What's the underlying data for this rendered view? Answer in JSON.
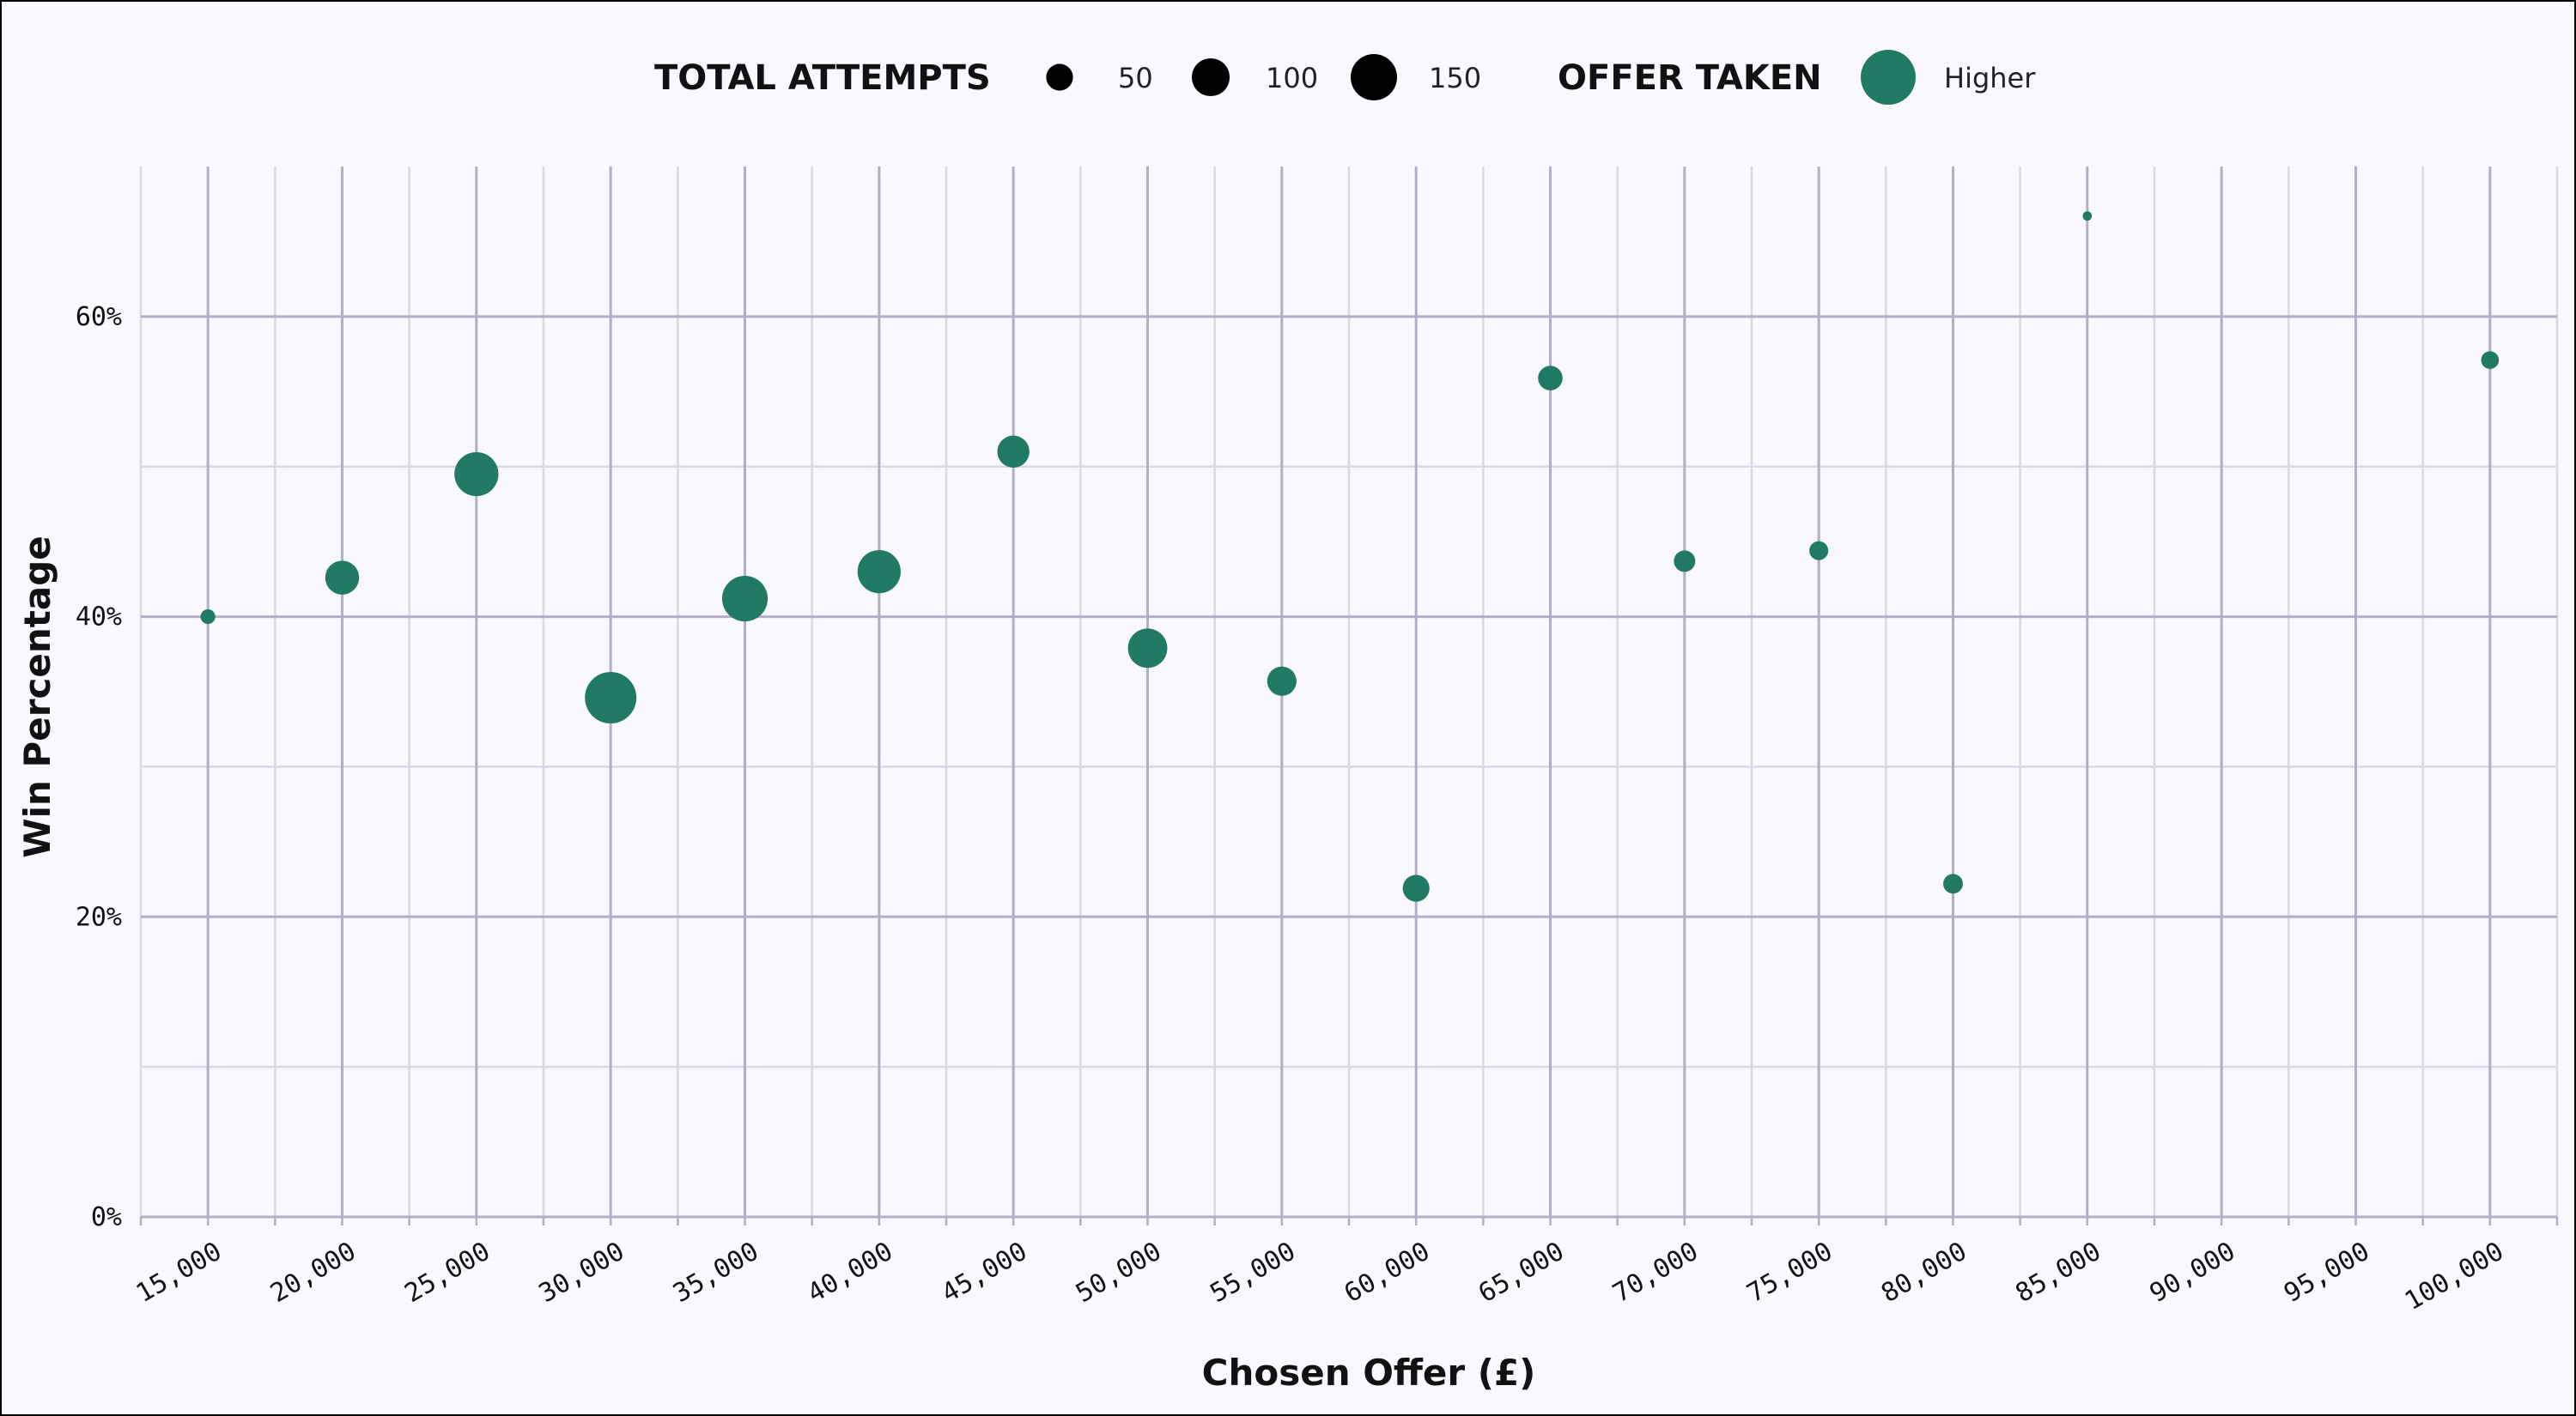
{
  "chart_data": {
    "type": "scatter",
    "title": "",
    "xlabel": "Chosen Offer (£)",
    "ylabel": "Win Percentage",
    "xlim": [
      12500,
      102500
    ],
    "ylim": [
      0,
      0.7
    ],
    "x_ticks": [
      15000,
      20000,
      25000,
      30000,
      35000,
      40000,
      45000,
      50000,
      55000,
      60000,
      65000,
      70000,
      75000,
      80000,
      85000,
      90000,
      95000,
      100000
    ],
    "x_tick_labels": [
      "15,000",
      "20,000",
      "25,000",
      "30,000",
      "35,000",
      "40,000",
      "45,000",
      "50,000",
      "55,000",
      "60,000",
      "65,000",
      "70,000",
      "75,000",
      "80,000",
      "85,000",
      "90,000",
      "95,000",
      "100,000"
    ],
    "y_ticks": [
      0,
      0.2,
      0.4,
      0.6
    ],
    "y_tick_labels": [
      "0%",
      "20%",
      "40%",
      "60%"
    ],
    "grid": true,
    "legend_placement": "top",
    "size_legend": {
      "title": "TOTAL ATTEMPTS",
      "entries": [
        {
          "label": "50",
          "value": 50
        },
        {
          "label": "100",
          "value": 100
        },
        {
          "label": "150",
          "value": 150
        }
      ]
    },
    "color_legend": {
      "title": "OFFER TAKEN",
      "entries": [
        {
          "label": "Higher",
          "color": "#217a63"
        }
      ]
    },
    "series": [
      {
        "name": "Higher",
        "color": "#217a63",
        "points": [
          {
            "x": 15000,
            "y": 0.4,
            "size": 15
          },
          {
            "x": 20000,
            "y": 0.426,
            "size": 80
          },
          {
            "x": 25000,
            "y": 0.495,
            "size": 135
          },
          {
            "x": 30000,
            "y": 0.346,
            "size": 185
          },
          {
            "x": 35000,
            "y": 0.412,
            "size": 145
          },
          {
            "x": 40000,
            "y": 0.43,
            "size": 130
          },
          {
            "x": 45000,
            "y": 0.51,
            "size": 72
          },
          {
            "x": 50000,
            "y": 0.379,
            "size": 108
          },
          {
            "x": 55000,
            "y": 0.357,
            "size": 60
          },
          {
            "x": 60000,
            "y": 0.219,
            "size": 50
          },
          {
            "x": 65000,
            "y": 0.559,
            "size": 42
          },
          {
            "x": 70000,
            "y": 0.437,
            "size": 32
          },
          {
            "x": 75000,
            "y": 0.444,
            "size": 25
          },
          {
            "x": 80000,
            "y": 0.222,
            "size": 27
          },
          {
            "x": 85000,
            "y": 0.667,
            "size": 6
          },
          {
            "x": 100000,
            "y": 0.571,
            "size": 22
          }
        ]
      }
    ]
  }
}
